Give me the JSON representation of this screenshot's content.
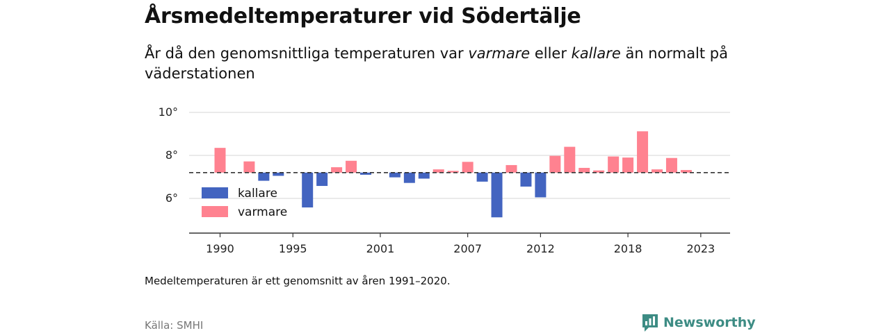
{
  "header": {
    "title": "Årsmedeltemperaturer vid Södertälje",
    "subtitle_parts": [
      "År då den genomsnittliga temperaturen var ",
      "varmare",
      " eller ",
      "kallare",
      " än normalt på väderstationen"
    ]
  },
  "footer": {
    "note": "Medeltemperaturen är ett genomsnitt av åren 1991–2020.",
    "source": "Källa: SMHI",
    "brand": "Newsworthy"
  },
  "colors": {
    "warmer": "#ff8290",
    "colder": "#4364c0",
    "grid": "#dddddd",
    "axis": "#333333",
    "brand": "#3d8c84"
  },
  "chart_data": {
    "type": "bar",
    "title": "Årsmedeltemperaturer vid Södertälje",
    "xlabel": "",
    "ylabel": "",
    "baseline": 7.2,
    "ylim": [
      4.4,
      10
    ],
    "yticks": [
      6,
      8,
      10
    ],
    "ytick_labels": [
      "6°",
      "8°",
      "10°"
    ],
    "xtick_years": [
      1990,
      1995,
      2001,
      2007,
      2012,
      2018,
      2023
    ],
    "xtick_labels": [
      "1990",
      "1995",
      "2001",
      "2007",
      "2012",
      "2018",
      "2023"
    ],
    "grid": true,
    "legend": {
      "position": "bottom-left",
      "entries": [
        {
          "key": "colder",
          "label": "kallare"
        },
        {
          "key": "warmer",
          "label": "varmare"
        }
      ]
    },
    "years": [
      1990,
      1991,
      1992,
      1993,
      1994,
      1995,
      1996,
      1997,
      1998,
      1999,
      2000,
      2001,
      2002,
      2003,
      2004,
      2005,
      2006,
      2007,
      2008,
      2009,
      2010,
      2011,
      2012,
      2013,
      2014,
      2015,
      2016,
      2017,
      2018,
      2019,
      2020,
      2021,
      2022,
      2023
    ],
    "values": [
      8.35,
      null,
      7.72,
      6.82,
      7.05,
      null,
      5.58,
      6.58,
      7.45,
      7.75,
      7.1,
      null,
      6.98,
      6.72,
      6.92,
      7.35,
      7.28,
      7.7,
      6.78,
      5.12,
      7.55,
      6.55,
      6.05,
      7.98,
      8.4,
      7.42,
      7.3,
      7.95,
      7.9,
      9.12,
      7.35,
      7.88,
      7.32,
      null
    ]
  }
}
